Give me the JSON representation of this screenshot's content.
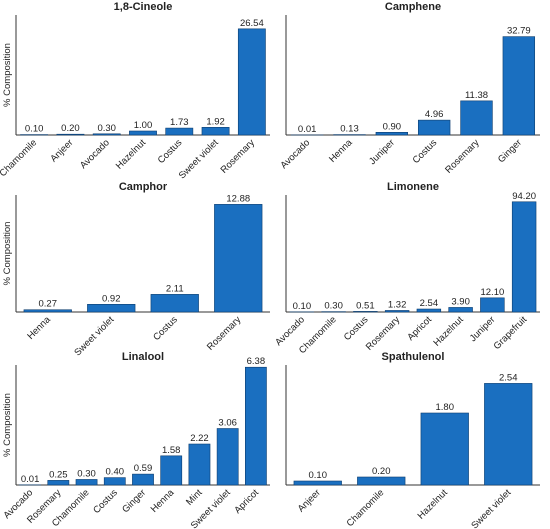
{
  "chart_data": [
    {
      "type": "bar",
      "title": "1,8-Cineole",
      "ylabel": "% Composition",
      "categories": [
        "Chamomile",
        "Anjeer",
        "Avocado",
        "Hazelnut",
        "Costus",
        "Sweet violet",
        "Rosemary"
      ],
      "values": [
        0.1,
        0.2,
        0.3,
        1.0,
        1.73,
        1.92,
        26.54
      ],
      "value_labels": [
        "0.10",
        "0.20",
        "0.30",
        "1.00",
        "1.73",
        "1.92",
        "26.54"
      ],
      "ylim": [
        0,
        30
      ],
      "color": "#1a6fc0"
    },
    {
      "type": "bar",
      "title": "Camphene",
      "categories": [
        "Avocado",
        "Henna",
        "Juniper",
        "Costus",
        "Rosemary",
        "Ginger"
      ],
      "values": [
        0.01,
        0.13,
        0.9,
        4.96,
        11.38,
        32.79
      ],
      "value_labels": [
        "0.01",
        "0.13",
        "0.90",
        "4.96",
        "11.38",
        "32.79"
      ],
      "ylim": [
        0,
        40
      ],
      "color": "#1a6fc0"
    },
    {
      "type": "bar",
      "title": "Camphor",
      "ylabel": "% Composition",
      "categories": [
        "Henna",
        "Sweet violet",
        "Costus",
        "Rosemary"
      ],
      "values": [
        0.27,
        0.92,
        2.11,
        12.88
      ],
      "value_labels": [
        "0.27",
        "0.92",
        "2.11",
        "12.88"
      ],
      "ylim": [
        0,
        14
      ],
      "color": "#1a6fc0"
    },
    {
      "type": "bar",
      "title": "Limonene",
      "categories": [
        "Avocado",
        "Chamomile",
        "Costus",
        "Rosemary",
        "Apricot",
        "Hazelnut",
        "Juniper",
        "Grapefruit"
      ],
      "values": [
        0.1,
        0.3,
        0.51,
        1.32,
        2.54,
        3.9,
        12.1,
        94.2
      ],
      "value_labels": [
        "0.10",
        "0.30",
        "0.51",
        "1.32",
        "2.54",
        "3.90",
        "12.10",
        "94.20"
      ],
      "ylim": [
        0,
        100
      ],
      "color": "#1a6fc0"
    },
    {
      "type": "bar",
      "title": "Linalool",
      "ylabel": "% Composition",
      "categories": [
        "Avocado",
        "Rosemary",
        "Chamomile",
        "Costus",
        "Ginger",
        "Henna",
        "Mint",
        "Sweet violet",
        "Apricot"
      ],
      "values": [
        0.01,
        0.25,
        0.3,
        0.4,
        0.59,
        1.58,
        2.22,
        3.06,
        6.38
      ],
      "value_labels": [
        "0.01",
        "0.25",
        "0.30",
        "0.40",
        "0.59",
        "1.58",
        "2.22",
        "3.06",
        "6.38"
      ],
      "ylim": [
        0,
        6.5
      ],
      "color": "#1a6fc0"
    },
    {
      "type": "bar",
      "title": "Spathulenol",
      "categories": [
        "Anjeer",
        "Chamomile",
        "Hazelnut",
        "Sweet violet"
      ],
      "values": [
        0.1,
        0.2,
        1.8,
        2.54
      ],
      "value_labels": [
        "0.10",
        "0.20",
        "1.80",
        "2.54"
      ],
      "ylim": [
        0,
        3
      ],
      "color": "#1a6fc0"
    }
  ]
}
